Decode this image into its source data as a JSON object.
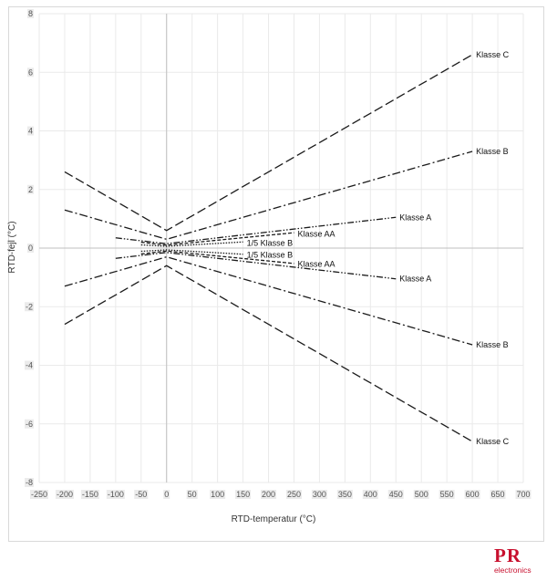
{
  "chart_data": {
    "type": "line",
    "xlabel": "RTD-temperatur (°C)",
    "ylabel": "RTD-fejl (°C)",
    "xlim": [
      -250,
      700
    ],
    "ylim": [
      -8,
      8
    ],
    "x_ticks": [
      -250,
      -200,
      -150,
      -100,
      -50,
      0,
      50,
      100,
      150,
      200,
      250,
      300,
      350,
      400,
      450,
      500,
      550,
      600,
      650,
      700
    ],
    "y_ticks": [
      -8,
      -6,
      -4,
      -2,
      0,
      2,
      4,
      6,
      8
    ],
    "grid": true,
    "series": [
      {
        "name": "Klasse C",
        "dash": "10,4",
        "points": [
          [
            -200,
            2.6
          ],
          [
            0,
            0.6
          ],
          [
            600,
            6.6
          ]
        ]
      },
      {
        "name": "Klasse C",
        "dash": "10,4",
        "points": [
          [
            -200,
            -2.6
          ],
          [
            0,
            -0.6
          ],
          [
            600,
            -6.6
          ]
        ]
      },
      {
        "name": "Klasse B",
        "dash": "9,3,2,3",
        "points": [
          [
            -200,
            1.3
          ],
          [
            0,
            0.3
          ],
          [
            600,
            3.3
          ]
        ]
      },
      {
        "name": "Klasse B",
        "dash": "9,3,2,3",
        "points": [
          [
            -200,
            -1.3
          ],
          [
            0,
            -0.3
          ],
          [
            600,
            -3.3
          ]
        ]
      },
      {
        "name": "Klasse A",
        "dash": "7,2,1.5,2,1.5,2",
        "points": [
          [
            -100,
            0.35
          ],
          [
            0,
            0.15
          ],
          [
            450,
            1.05
          ]
        ]
      },
      {
        "name": "Klasse A",
        "dash": "7,2,1.5,2,1.5,2",
        "points": [
          [
            -100,
            -0.35
          ],
          [
            0,
            -0.15
          ],
          [
            450,
            -1.05
          ]
        ]
      },
      {
        "name": "Klasse AA",
        "dash": "4,2",
        "points": [
          [
            -50,
            0.2
          ],
          [
            0,
            0.1
          ],
          [
            250,
            0.525
          ]
        ]
      },
      {
        "name": "Klasse AA",
        "dash": "4,2",
        "points": [
          [
            -50,
            -0.2
          ],
          [
            0,
            -0.1
          ],
          [
            250,
            -0.525
          ]
        ]
      },
      {
        "name": "1/5 Klasse B",
        "dash": "1.5,1.5",
        "points": [
          [
            -50,
            0.11
          ],
          [
            0,
            0.06
          ],
          [
            150,
            0.21
          ]
        ]
      },
      {
        "name": "1/5 Klasse B",
        "dash": "1.5,1.5",
        "points": [
          [
            -50,
            -0.11
          ],
          [
            0,
            -0.06
          ],
          [
            150,
            -0.21
          ]
        ]
      }
    ],
    "labels": [
      {
        "text": "Klasse C",
        "x": 600,
        "y": 6.6
      },
      {
        "text": "Klasse C",
        "x": 600,
        "y": -6.6
      },
      {
        "text": "Klasse B",
        "x": 600,
        "y": 3.3
      },
      {
        "text": "Klasse B",
        "x": 600,
        "y": -3.3
      },
      {
        "text": "Klasse A",
        "x": 450,
        "y": 1.05
      },
      {
        "text": "Klasse A",
        "x": 450,
        "y": -1.05
      },
      {
        "text": "Klasse AA",
        "x": 250,
        "y": 0.48
      },
      {
        "text": "Klasse AA",
        "x": 250,
        "y": -0.55
      },
      {
        "text": "1/5 Klasse B",
        "x": 150,
        "y": 0.17
      },
      {
        "text": "1/5 Klasse B",
        "x": 150,
        "y": -0.23
      }
    ]
  },
  "logo": {
    "mark": "PR",
    "sub": "electronics",
    "color": "#c8102e"
  }
}
